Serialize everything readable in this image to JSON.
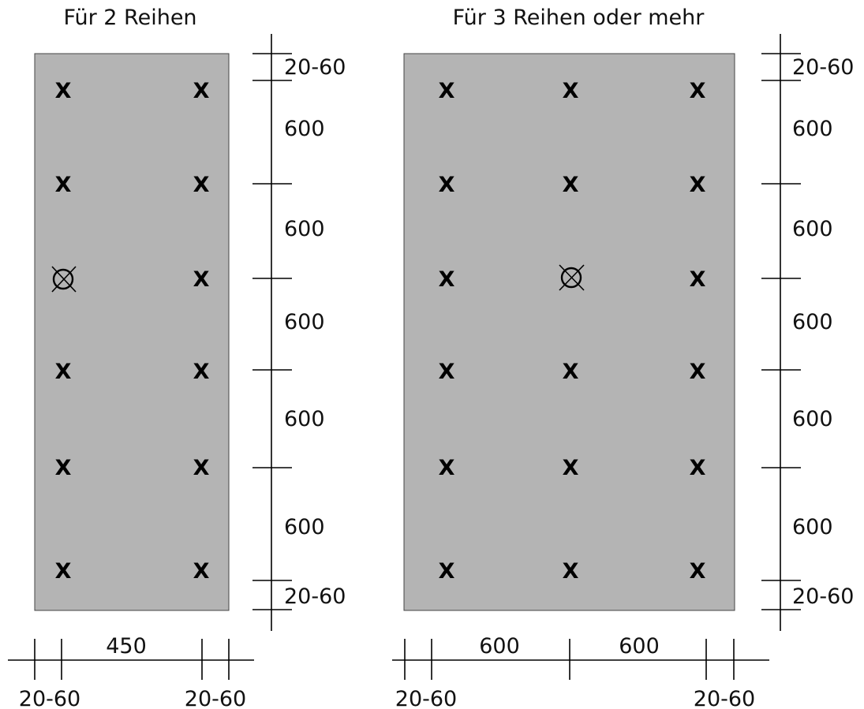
{
  "diagrams": [
    {
      "title": "Für 2 Reihen",
      "row_gaps": [
        "600",
        "600",
        "600",
        "600",
        "600"
      ],
      "edge_top": "20-60",
      "edge_bottom": "20-60",
      "col_gaps": [
        "450"
      ],
      "edge_left": "20-60",
      "edge_right": "20-60",
      "mark_glyph": "X",
      "grid_rows": 6,
      "grid_cols": 2,
      "special_mark": {
        "row": 3,
        "col": 1,
        "icon": "circle-cross-icon"
      }
    },
    {
      "title": "Für 3 Reihen oder mehr",
      "row_gaps": [
        "600",
        "600",
        "600",
        "600",
        "600"
      ],
      "edge_top": "20-60",
      "edge_bottom": "20-60",
      "col_gaps": [
        "600",
        "600"
      ],
      "edge_left": "20-60",
      "edge_right": "20-60",
      "mark_glyph": "X",
      "grid_rows": 6,
      "grid_cols": 3,
      "special_mark": {
        "row": 3,
        "col": 2,
        "icon": "circle-cross-icon"
      }
    }
  ],
  "colors": {
    "panel": "#b4b4b4",
    "ink": "#000000"
  }
}
